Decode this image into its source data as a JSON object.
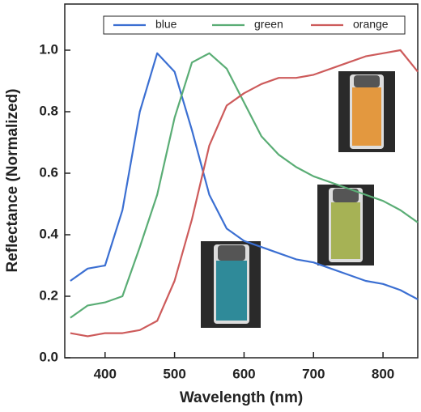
{
  "chart_data": {
    "type": "line",
    "x_label": "Wavelength (nm)",
    "y_label": "Reflectance (Normalized)",
    "x": [
      350,
      375,
      400,
      425,
      450,
      475,
      500,
      525,
      550,
      575,
      600,
      625,
      650,
      675,
      700,
      725,
      750,
      775,
      800,
      825,
      850
    ],
    "series": [
      {
        "name": "blue",
        "color": "#3b6fd2",
        "values": [
          0.25,
          0.29,
          0.3,
          0.48,
          0.8,
          0.99,
          0.93,
          0.74,
          0.53,
          0.42,
          0.38,
          0.36,
          0.34,
          0.32,
          0.31,
          0.29,
          0.27,
          0.25,
          0.24,
          0.22,
          0.19
        ]
      },
      {
        "name": "green",
        "color": "#5aad75",
        "values": [
          0.13,
          0.17,
          0.18,
          0.2,
          0.36,
          0.53,
          0.78,
          0.96,
          0.99,
          0.94,
          0.83,
          0.72,
          0.66,
          0.62,
          0.59,
          0.57,
          0.55,
          0.53,
          0.51,
          0.48,
          0.44
        ]
      },
      {
        "name": "orange",
        "color": "#cd5b5b",
        "values": [
          0.08,
          0.07,
          0.08,
          0.08,
          0.09,
          0.12,
          0.25,
          0.45,
          0.69,
          0.82,
          0.86,
          0.89,
          0.91,
          0.91,
          0.92,
          0.94,
          0.96,
          0.98,
          0.99,
          1.0,
          0.93
        ]
      }
    ],
    "xlim": [
      342,
      850
    ],
    "ylim": [
      0,
      1.15
    ],
    "xticks": [
      400,
      500,
      600,
      700,
      800
    ],
    "yticks": [
      {
        "value": 0,
        "label": "0.0"
      },
      0.2,
      0.4,
      0.6,
      0.8,
      {
        "value": 1,
        "label": "1.0"
      }
    ]
  }
}
